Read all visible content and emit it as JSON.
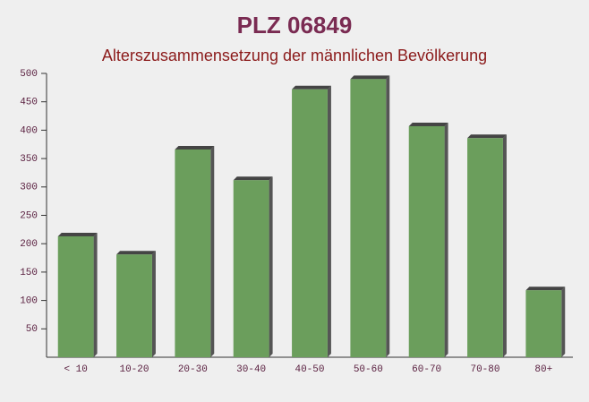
{
  "chart_data": {
    "type": "bar",
    "title": "PLZ 06849",
    "subtitle": "Alterszusammensetzung der männlichen Bevölkerung",
    "categories": [
      "< 10",
      "10-20",
      "20-30",
      "30-40",
      "40-50",
      "50-60",
      "60-70",
      "70-80",
      "80+"
    ],
    "values": [
      213,
      181,
      366,
      312,
      472,
      490,
      407,
      386,
      118
    ],
    "color": "#6b9e5c",
    "ylim": [
      0,
      500
    ],
    "yticks": [
      50,
      100,
      150,
      200,
      250,
      300,
      350,
      400,
      450,
      500
    ]
  }
}
